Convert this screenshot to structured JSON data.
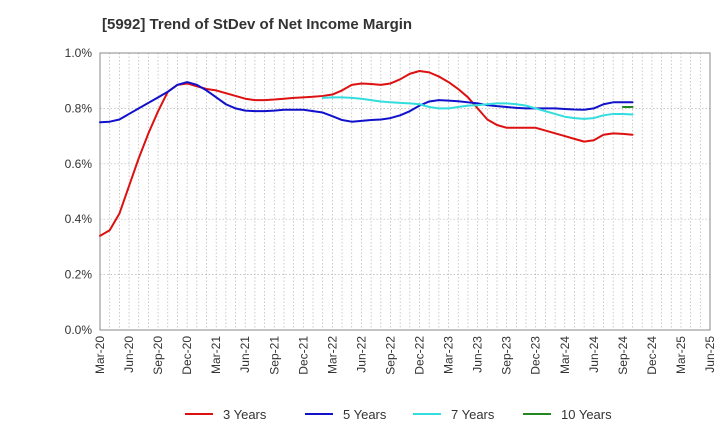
{
  "chart_data": {
    "type": "line",
    "title": "[5992]  Trend of StDev of Net Income Margin",
    "xlabel": "",
    "ylabel": "",
    "ylim": [
      0,
      1.0
    ],
    "y_ticks": [
      "0.0%",
      "0.2%",
      "0.4%",
      "0.6%",
      "0.8%",
      "1.0%"
    ],
    "x_ticks": [
      "Mar-20",
      "Jun-20",
      "Sep-20",
      "Dec-20",
      "Mar-21",
      "Jun-21",
      "Sep-21",
      "Dec-21",
      "Mar-22",
      "Jun-22",
      "Sep-22",
      "Dec-22",
      "Mar-23",
      "Jun-23",
      "Sep-23",
      "Dec-23",
      "Mar-24",
      "Jun-24",
      "Sep-24",
      "Dec-24",
      "Mar-25",
      "Jun-25"
    ],
    "grid": true,
    "legend_position": "bottom",
    "series": [
      {
        "name": "3 Years",
        "color": "#dd1111",
        "values": [
          [
            0,
            0.34
          ],
          [
            1,
            0.36
          ],
          [
            2,
            0.42
          ],
          [
            3,
            0.52
          ],
          [
            4,
            0.62
          ],
          [
            5,
            0.71
          ],
          [
            6,
            0.79
          ],
          [
            7,
            0.86
          ],
          [
            8,
            0.885
          ],
          [
            9,
            0.89
          ],
          [
            10,
            0.88
          ],
          [
            11,
            0.87
          ],
          [
            12,
            0.865
          ],
          [
            13,
            0.855
          ],
          [
            14,
            0.845
          ],
          [
            15,
            0.835
          ],
          [
            16,
            0.83
          ],
          [
            17,
            0.83
          ],
          [
            18,
            0.832
          ],
          [
            19,
            0.835
          ],
          [
            20,
            0.838
          ],
          [
            21,
            0.84
          ],
          [
            22,
            0.842
          ],
          [
            23,
            0.845
          ],
          [
            24,
            0.85
          ],
          [
            25,
            0.865
          ],
          [
            26,
            0.885
          ],
          [
            27,
            0.89
          ],
          [
            28,
            0.888
          ],
          [
            29,
            0.885
          ],
          [
            30,
            0.89
          ],
          [
            31,
            0.905
          ],
          [
            32,
            0.925
          ],
          [
            33,
            0.935
          ],
          [
            34,
            0.93
          ],
          [
            35,
            0.915
          ],
          [
            36,
            0.895
          ],
          [
            37,
            0.87
          ],
          [
            38,
            0.84
          ],
          [
            39,
            0.8
          ],
          [
            40,
            0.76
          ],
          [
            41,
            0.74
          ],
          [
            42,
            0.73
          ],
          [
            43,
            0.73
          ],
          [
            44,
            0.73
          ],
          [
            45,
            0.73
          ],
          [
            46,
            0.72
          ],
          [
            47,
            0.71
          ],
          [
            48,
            0.7
          ],
          [
            49,
            0.69
          ],
          [
            50,
            0.68
          ],
          [
            51,
            0.685
          ],
          [
            52,
            0.705
          ],
          [
            53,
            0.71
          ],
          [
            54,
            0.708
          ],
          [
            55,
            0.705
          ]
        ]
      },
      {
        "name": "5 Years",
        "color": "#1111cc",
        "values": [
          [
            0,
            0.75
          ],
          [
            1,
            0.752
          ],
          [
            2,
            0.76
          ],
          [
            3,
            0.78
          ],
          [
            4,
            0.8
          ],
          [
            5,
            0.82
          ],
          [
            6,
            0.84
          ],
          [
            7,
            0.86
          ],
          [
            8,
            0.885
          ],
          [
            9,
            0.895
          ],
          [
            10,
            0.885
          ],
          [
            11,
            0.865
          ],
          [
            12,
            0.84
          ],
          [
            13,
            0.815
          ],
          [
            14,
            0.8
          ],
          [
            15,
            0.792
          ],
          [
            16,
            0.79
          ],
          [
            17,
            0.79
          ],
          [
            18,
            0.792
          ],
          [
            19,
            0.795
          ],
          [
            20,
            0.795
          ],
          [
            21,
            0.795
          ],
          [
            22,
            0.79
          ],
          [
            23,
            0.785
          ],
          [
            24,
            0.772
          ],
          [
            25,
            0.758
          ],
          [
            26,
            0.752
          ],
          [
            27,
            0.755
          ],
          [
            28,
            0.758
          ],
          [
            29,
            0.76
          ],
          [
            30,
            0.765
          ],
          [
            31,
            0.775
          ],
          [
            32,
            0.79
          ],
          [
            33,
            0.81
          ],
          [
            34,
            0.825
          ],
          [
            35,
            0.83
          ],
          [
            36,
            0.828
          ],
          [
            37,
            0.826
          ],
          [
            38,
            0.822
          ],
          [
            39,
            0.818
          ],
          [
            40,
            0.812
          ],
          [
            41,
            0.808
          ],
          [
            42,
            0.805
          ],
          [
            43,
            0.802
          ],
          [
            44,
            0.8
          ],
          [
            45,
            0.8
          ],
          [
            46,
            0.8
          ],
          [
            47,
            0.8
          ],
          [
            48,
            0.798
          ],
          [
            49,
            0.796
          ],
          [
            50,
            0.795
          ],
          [
            51,
            0.8
          ],
          [
            52,
            0.815
          ],
          [
            53,
            0.822
          ],
          [
            54,
            0.822
          ],
          [
            55,
            0.822
          ]
        ]
      },
      {
        "name": "7 Years",
        "color": "#33dddd",
        "values": [
          [
            23,
            0.838
          ],
          [
            24,
            0.84
          ],
          [
            25,
            0.84
          ],
          [
            26,
            0.838
          ],
          [
            27,
            0.835
          ],
          [
            28,
            0.83
          ],
          [
            29,
            0.825
          ],
          [
            30,
            0.822
          ],
          [
            31,
            0.82
          ],
          [
            32,
            0.818
          ],
          [
            33,
            0.815
          ],
          [
            34,
            0.805
          ],
          [
            35,
            0.8
          ],
          [
            36,
            0.8
          ],
          [
            37,
            0.805
          ],
          [
            38,
            0.81
          ],
          [
            39,
            0.812
          ],
          [
            40,
            0.815
          ],
          [
            41,
            0.818
          ],
          [
            42,
            0.818
          ],
          [
            43,
            0.815
          ],
          [
            44,
            0.81
          ],
          [
            45,
            0.8
          ],
          [
            46,
            0.79
          ],
          [
            47,
            0.78
          ],
          [
            48,
            0.77
          ],
          [
            49,
            0.765
          ],
          [
            50,
            0.762
          ],
          [
            51,
            0.765
          ],
          [
            52,
            0.775
          ],
          [
            53,
            0.78
          ],
          [
            54,
            0.78
          ],
          [
            55,
            0.778
          ]
        ]
      },
      {
        "name": "10 Years",
        "color": "#228822",
        "values": [
          [
            54,
            0.805
          ],
          [
            55,
            0.805
          ]
        ]
      }
    ]
  }
}
